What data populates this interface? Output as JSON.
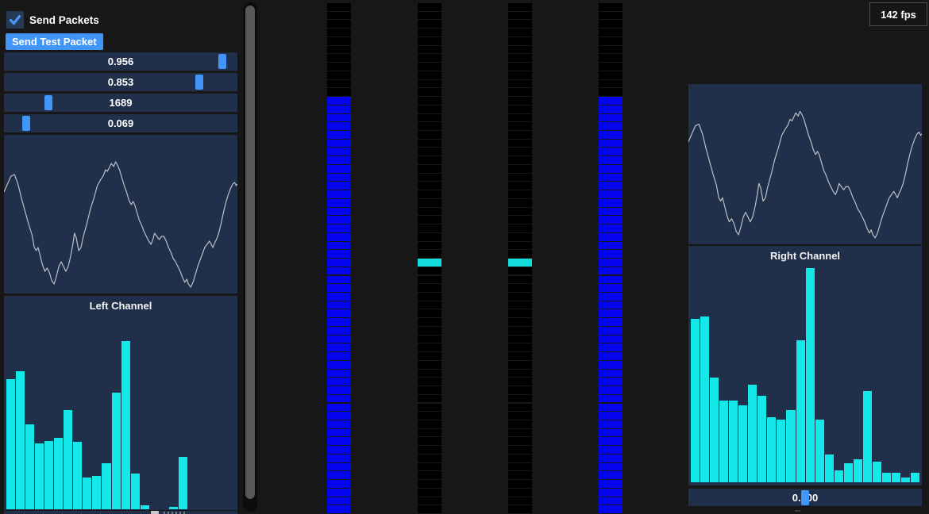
{
  "app": {
    "fps_label": "142 fps"
  },
  "left_panel": {
    "checkbox": {
      "label": "Send Packets",
      "checked": true
    },
    "button": {
      "label": "Send Test Packet"
    },
    "sliders": [
      {
        "value": "0.956",
        "fraction": 0.956
      },
      {
        "value": "0.853",
        "fraction": 0.853
      },
      {
        "value": "1689",
        "fraction": 0.175
      },
      {
        "value": "0.069",
        "fraction": 0.075
      }
    ]
  },
  "right_panel": {
    "slider": {
      "value": "0.500",
      "fraction": 0.5
    }
  },
  "chart_data": [
    {
      "type": "line",
      "id": "left-waveform",
      "title": "",
      "legend": false,
      "grid": false,
      "points_pct": [
        [
          0,
          36
        ],
        [
          1.5,
          31
        ],
        [
          3,
          26
        ],
        [
          4.5,
          25
        ],
        [
          6,
          31
        ],
        [
          7.5,
          40
        ],
        [
          9,
          48
        ],
        [
          10.5,
          56
        ],
        [
          12,
          63
        ],
        [
          13,
          71
        ],
        [
          13.8,
          73
        ],
        [
          14.6,
          71
        ],
        [
          15.5,
          76
        ],
        [
          16.5,
          82
        ],
        [
          17.5,
          86
        ],
        [
          18.5,
          84
        ],
        [
          19.5,
          87
        ],
        [
          20.5,
          92
        ],
        [
          21.5,
          94
        ],
        [
          22.5,
          89
        ],
        [
          23.5,
          83
        ],
        [
          24.5,
          80
        ],
        [
          25.5,
          83
        ],
        [
          26.5,
          86
        ],
        [
          27.5,
          83
        ],
        [
          28.5,
          77
        ],
        [
          29.5,
          69
        ],
        [
          30.2,
          62
        ],
        [
          31,
          65
        ],
        [
          32,
          73
        ],
        [
          33,
          71
        ],
        [
          34,
          64
        ],
        [
          35.5,
          56
        ],
        [
          37,
          47
        ],
        [
          38.5,
          40
        ],
        [
          40,
          32
        ],
        [
          41.5,
          28
        ],
        [
          42.5,
          26
        ],
        [
          43.5,
          22
        ],
        [
          44.3,
          23
        ],
        [
          45,
          21
        ],
        [
          46,
          18
        ],
        [
          47,
          20
        ],
        [
          47.8,
          17
        ],
        [
          48.6,
          19
        ],
        [
          49.5,
          22
        ],
        [
          50.5,
          27
        ],
        [
          51.5,
          32
        ],
        [
          52.5,
          36
        ],
        [
          53.5,
          41
        ],
        [
          54.5,
          44
        ],
        [
          55.3,
          42
        ],
        [
          56,
          44
        ],
        [
          57,
          49
        ],
        [
          58,
          54
        ],
        [
          59,
          57
        ],
        [
          60,
          61
        ],
        [
          61,
          64
        ],
        [
          62,
          67
        ],
        [
          63,
          69
        ],
        [
          63.8,
          66
        ],
        [
          64.5,
          62
        ],
        [
          65.5,
          64
        ],
        [
          66.5,
          66
        ],
        [
          67.5,
          64
        ],
        [
          68.5,
          64
        ],
        [
          69.5,
          67
        ],
        [
          70.5,
          71
        ],
        [
          71.5,
          74
        ],
        [
          72.5,
          78
        ],
        [
          73.5,
          80
        ],
        [
          74.5,
          83
        ],
        [
          75.5,
          86
        ],
        [
          76.5,
          90
        ],
        [
          77.5,
          93
        ],
        [
          78.3,
          91
        ],
        [
          79,
          94
        ],
        [
          80,
          96
        ],
        [
          81,
          93
        ],
        [
          82,
          88
        ],
        [
          83,
          83
        ],
        [
          84,
          79
        ],
        [
          85,
          75
        ],
        [
          86,
          71
        ],
        [
          87,
          69
        ],
        [
          88,
          67
        ],
        [
          88.8,
          69
        ],
        [
          89.5,
          71
        ],
        [
          90.3,
          68
        ],
        [
          91,
          66
        ],
        [
          92,
          62
        ],
        [
          93,
          56
        ],
        [
          94,
          49
        ],
        [
          95,
          43
        ],
        [
          96,
          38
        ],
        [
          97,
          34
        ],
        [
          98,
          31
        ],
        [
          98.8,
          30
        ],
        [
          99.5,
          32
        ],
        [
          100,
          31
        ]
      ]
    },
    {
      "type": "bar",
      "id": "left-channel-histogram",
      "title": "Left Channel",
      "ylim": [
        0,
        1
      ],
      "values": [
        0.62,
        0.655,
        0.405,
        0.315,
        0.325,
        0.34,
        0.47,
        0.32,
        0.15,
        0.16,
        0.22,
        0.555,
        0.8,
        0.17,
        0.02,
        0,
        0,
        0.01,
        0.25,
        0,
        0,
        0,
        0,
        0
      ]
    },
    {
      "type": "line",
      "id": "right-waveform",
      "title": "",
      "legend": false,
      "grid": false,
      "points_same_as": 0
    },
    {
      "type": "bar",
      "id": "right-channel-histogram",
      "title": "Right Channel",
      "ylim": [
        0,
        1
      ],
      "values": [
        0.7,
        0.71,
        0.45,
        0.35,
        0.35,
        0.33,
        0.42,
        0.37,
        0.28,
        0.27,
        0.31,
        0.61,
        0.92,
        0.27,
        0.12,
        0.05,
        0.08,
        0.1,
        0.39,
        0.09,
        0.04,
        0.04,
        0.02,
        0.04
      ]
    }
  ],
  "meters": {
    "segment_count": 60,
    "columns": [
      {
        "id": "meter-1",
        "filled_from_segment": 11
      },
      {
        "id": "meter-2",
        "active_segment": 30
      },
      {
        "id": "meter-3",
        "active_segment": 30
      },
      {
        "id": "meter-4",
        "filled_from_segment": 11
      }
    ]
  },
  "colors": {
    "accent_blue": "#4296f9",
    "frame_navy": "#20304a",
    "histogram_cyan": "#15e8e8",
    "meter_cyan": "#12dcdc",
    "meter_blue": "#0404ee",
    "meter_off_black": "#000000",
    "waveform_gray": "#bcc0c5",
    "background": "#171717"
  }
}
